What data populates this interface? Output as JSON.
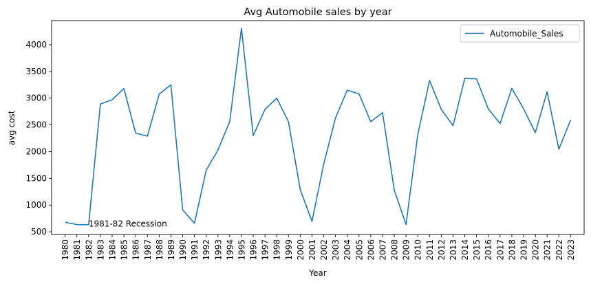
{
  "chart_data": {
    "type": "line",
    "title": "Avg Automobile sales by year",
    "xlabel": "Year",
    "ylabel": "avg cost",
    "x": [
      1980,
      1981,
      1982,
      1983,
      1984,
      1985,
      1986,
      1987,
      1988,
      1989,
      1990,
      1991,
      1992,
      1993,
      1994,
      1995,
      1996,
      1997,
      1998,
      1999,
      2000,
      2001,
      2002,
      2003,
      2004,
      2005,
      2006,
      2007,
      2008,
      2009,
      2010,
      2011,
      2012,
      2013,
      2014,
      2015,
      2016,
      2017,
      2018,
      2019,
      2020,
      2021,
      2022,
      2023
    ],
    "series": [
      {
        "name": "Automobile_Sales",
        "color": "#1f77b4",
        "values": [
          680,
          635,
          632,
          2890,
          2970,
          3180,
          2345,
          2290,
          3075,
          3250,
          910,
          660,
          1650,
          2030,
          2560,
          4305,
          2300,
          2790,
          3000,
          2560,
          1290,
          695,
          1770,
          2630,
          3150,
          3080,
          2560,
          2730,
          1280,
          635,
          2320,
          3330,
          2790,
          2485,
          3370,
          3360,
          2800,
          2525,
          3185,
          2800,
          2355,
          3120,
          2045,
          2590
        ]
      }
    ],
    "xlim": [
      1979.35,
      1980.35,
      2023.65
    ],
    "ylim": [
      450,
      4450
    ],
    "yticks": [
      500,
      1000,
      1500,
      2000,
      2500,
      3000,
      3500,
      4000
    ],
    "grid": false,
    "legend": "top-right",
    "annotations": [
      {
        "text": "1981-82 Recession",
        "x": 1982,
        "y": 650
      }
    ]
  }
}
